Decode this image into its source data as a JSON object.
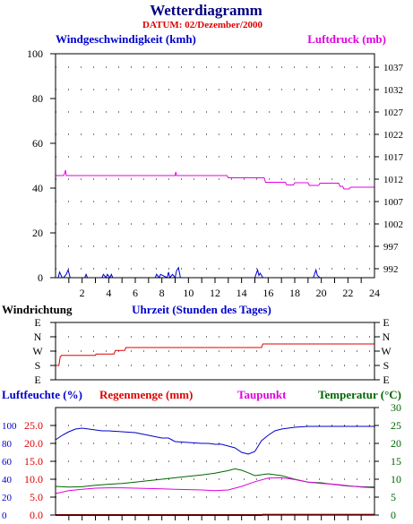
{
  "header": {
    "title": "Wetterdiagramm",
    "date_label": "DATUM: 02/Dezember/2000"
  },
  "colors": {
    "navy": "#000080",
    "blue": "#0000cc",
    "magenta": "#e000e0",
    "red": "#e00000",
    "darkred": "#cc0000",
    "green": "#006600",
    "grid": "#000000"
  },
  "chart_data": [
    {
      "type": "line",
      "id": "wind_pressure",
      "xlim": [
        0,
        24
      ],
      "x_ticks": [
        2,
        4,
        6,
        8,
        10,
        12,
        14,
        16,
        18,
        20,
        22,
        24
      ],
      "left_axis": {
        "label": "Windgeschwindigkeit (kmh)",
        "ylim": [
          0,
          100
        ],
        "ticks": [
          0,
          20,
          40,
          60,
          80,
          100
        ]
      },
      "right_axis": {
        "label": "Luftdruck (mb)",
        "ylim": [
          990,
          1040
        ],
        "ticks": [
          992,
          997,
          1002,
          1007,
          1012,
          1017,
          1022,
          1027,
          1032,
          1037
        ]
      },
      "series": [
        {
          "name": "Luftdruck (mb)",
          "axis": "right",
          "color": "magenta",
          "x": [
            0,
            0.6,
            0.7,
            0.75,
            0.8,
            9.0,
            9.05,
            9.1,
            12.9,
            13.0,
            15.7,
            15.8,
            17.3,
            17.4,
            17.9,
            18.0,
            19.0,
            19.1,
            19.8,
            19.9,
            21.3,
            21.4,
            21.6,
            21.7,
            22.1,
            22.2,
            24
          ],
          "y": [
            1012.8,
            1012.8,
            1013.4,
            1014.0,
            1012.8,
            1012.8,
            1013.6,
            1012.8,
            1012.8,
            1012.3,
            1012.3,
            1011.3,
            1011.3,
            1010.7,
            1010.7,
            1011.2,
            1011.2,
            1010.6,
            1010.6,
            1011.1,
            1011.1,
            1010.4,
            1010.4,
            1009.8,
            1009.8,
            1010.2,
            1010.2
          ]
        },
        {
          "name": "Windgeschwindigkeit (kmh)",
          "axis": "left",
          "color": "blue",
          "x": [
            0,
            0.2,
            0.3,
            0.5,
            0.6,
            0.8,
            0.95,
            1.1,
            1.3,
            2.2,
            2.3,
            2.4,
            3.5,
            3.6,
            3.8,
            3.9,
            4.1,
            4.2,
            4.3,
            7.5,
            7.6,
            7.8,
            7.9,
            8.4,
            8.5,
            8.6,
            8.8,
            9.0,
            9.1,
            9.25,
            9.4,
            9.6,
            15.0,
            15.2,
            15.3,
            15.4,
            15.6,
            15.8,
            19.4,
            19.6,
            19.7,
            19.9,
            24
          ],
          "y": [
            0,
            0,
            2.5,
            0,
            0,
            1.5,
            3.5,
            0,
            0,
            0,
            1.5,
            0,
            0,
            1.5,
            0,
            1.5,
            0,
            1.5,
            0,
            0,
            1.5,
            0,
            1.5,
            0,
            2.5,
            0,
            1.5,
            0,
            3,
            4.5,
            0,
            0,
            0,
            3.5,
            1,
            2,
            0,
            0,
            0,
            3.5,
            1,
            0,
            0
          ]
        }
      ]
    },
    {
      "type": "line",
      "id": "wind_direction",
      "title": "Windrichtung",
      "xlabel": "Uhrzeit (Stunden des Tages)",
      "categories": [
        "E",
        "N",
        "W",
        "S",
        "E"
      ],
      "series": [
        {
          "name": "Windrichtung",
          "color": "red",
          "x": [
            0,
            0.25,
            0.35,
            0.45,
            3.0,
            3.05,
            4.4,
            4.5,
            5.2,
            5.3,
            15.5,
            15.6,
            24
          ],
          "y": [
            "S",
            "S",
            "W",
            "W",
            "W",
            "W",
            "W",
            "N",
            "N",
            "N",
            "N",
            "N",
            "N"
          ],
          "y_index": [
            3,
            3,
            2.4,
            2.3,
            2.3,
            2.2,
            2.2,
            1.95,
            1.95,
            1.75,
            1.75,
            1.5,
            1.5
          ]
        }
      ]
    },
    {
      "type": "line",
      "id": "humidity_rain",
      "xlim": [
        0,
        24
      ],
      "axes": {
        "humidity": {
          "label": "Luftfeuchte (%)",
          "ylim": [
            0,
            120
          ],
          "ticks": [
            0,
            20,
            40,
            60,
            80,
            100
          ]
        },
        "rain": {
          "label": "Regenmenge (mm)",
          "ylim": [
            0,
            30
          ],
          "ticks": [
            "0.0",
            "5.0",
            "10.0",
            "15.0",
            "20.0",
            "25.0"
          ]
        },
        "dewpoint": {
          "label": "Taupunkt"
        },
        "temperature": {
          "label": "Temperatur (°C)",
          "ylim": [
            0,
            30
          ],
          "ticks": [
            0,
            5,
            10,
            15,
            20,
            25,
            30
          ]
        }
      },
      "series": [
        {
          "name": "Luftfeuchte (%)",
          "axis": "humidity",
          "color": "blue",
          "x": [
            0,
            0.5,
            1,
            1.5,
            2,
            2.5,
            3,
            3.5,
            4,
            5,
            6,
            7,
            8,
            8.5,
            9,
            10,
            11,
            11.5,
            12,
            12.5,
            13,
            13.5,
            14,
            14.5,
            15,
            15.5,
            16,
            16.5,
            17,
            17.5,
            18,
            19,
            20,
            21,
            22,
            23,
            24
          ],
          "y": [
            84,
            89,
            93,
            96,
            97,
            96,
            95,
            94,
            94,
            93,
            92,
            89,
            86,
            86,
            82,
            81,
            80,
            80,
            79,
            79,
            77,
            75,
            70,
            68,
            71,
            83,
            89,
            94,
            96,
            97,
            98,
            99,
            99,
            99,
            99,
            99,
            99
          ]
        },
        {
          "name": "Regenmenge (mm)",
          "axis": "rain",
          "color": "darkred",
          "x": [
            0,
            15.5,
            15.6,
            24
          ],
          "y": [
            0,
            0,
            0.1,
            0.1
          ]
        },
        {
          "name": "Temperatur (°C)",
          "axis": "temperature",
          "color": "green",
          "x": [
            0,
            1,
            2,
            3,
            4,
            5,
            6,
            7,
            8,
            9,
            10,
            11,
            12,
            13,
            13.5,
            14,
            14.5,
            15,
            16,
            17,
            18,
            19,
            20,
            21,
            22,
            23,
            24
          ],
          "y": [
            8.0,
            7.8,
            7.9,
            8.3,
            8.6,
            8.8,
            9.2,
            9.6,
            10.0,
            10.4,
            10.8,
            11.2,
            11.7,
            12.4,
            12.9,
            12.5,
            11.8,
            11.0,
            11.5,
            11.0,
            10.0,
            9.2,
            9.0,
            8.5,
            8.1,
            7.9,
            7.8
          ]
        },
        {
          "name": "Taupunkt",
          "axis": "temperature",
          "color": "magenta",
          "x": [
            0,
            1,
            2,
            3,
            4,
            5,
            6,
            7,
            8,
            9,
            10,
            11,
            12,
            13,
            14,
            15,
            16,
            17,
            18,
            19,
            20,
            21,
            22,
            23,
            24
          ],
          "y": [
            6.0,
            6.8,
            7.2,
            7.5,
            7.6,
            7.6,
            7.5,
            7.4,
            7.3,
            7.2,
            7.1,
            7.0,
            6.8,
            7.0,
            8.0,
            9.3,
            10.3,
            10.4,
            9.9,
            9.2,
            8.8,
            8.6,
            8.2,
            7.8,
            7.6
          ]
        }
      ]
    }
  ]
}
